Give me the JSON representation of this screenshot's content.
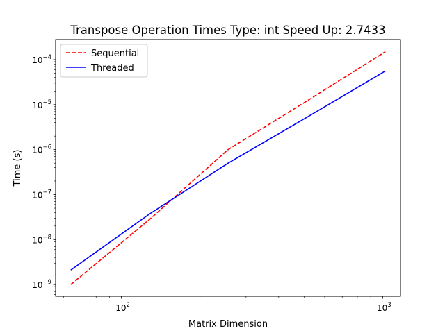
{
  "chart_data": {
    "type": "line",
    "title": "Transpose Operation Times Type: int Speed Up: 2.7433",
    "xlabel": "Matrix Dimension",
    "ylabel": "Time (s)",
    "xscale": "log",
    "yscale": "log",
    "xlim": [
      56,
      1170
    ],
    "ylim": [
      5.5e-10,
      0.00028
    ],
    "grid": false,
    "legend_position": "top-left",
    "x": [
      64,
      128,
      256,
      512,
      1024
    ],
    "series": [
      {
        "name": "Sequential",
        "color": "#ff0000",
        "linestyle": "dashed",
        "values": [
          1e-09,
          2.8e-08,
          1e-06,
          1.2e-05,
          0.00015
        ]
      },
      {
        "name": "Threaded",
        "color": "#0000ff",
        "linestyle": "solid",
        "values": [
          2.1e-09,
          3.7e-08,
          5e-07,
          5.2e-06,
          5.6e-05
        ]
      }
    ],
    "x_ticks": [
      {
        "value": 100,
        "base": "10",
        "exp": "2"
      },
      {
        "value": 1000,
        "base": "10",
        "exp": "3"
      }
    ],
    "y_ticks": [
      {
        "value": 1e-09,
        "base": "10",
        "exp": "−9"
      },
      {
        "value": 1e-08,
        "base": "10",
        "exp": "−8"
      },
      {
        "value": 1e-07,
        "base": "10",
        "exp": "−7"
      },
      {
        "value": 1e-06,
        "base": "10",
        "exp": "−6"
      },
      {
        "value": 1e-05,
        "base": "10",
        "exp": "−5"
      },
      {
        "value": 0.0001,
        "base": "10",
        "exp": "−4"
      }
    ]
  }
}
